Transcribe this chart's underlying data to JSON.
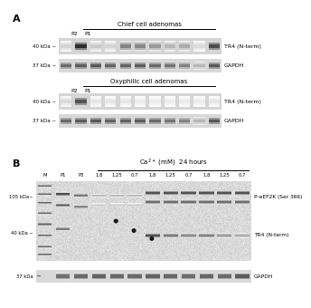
{
  "bg": "#ffffff",
  "gel_bg_light": "#e8e8e8",
  "gel_bg_medium": "#d8d8d8",
  "section1_title": "Chief cell adenomas",
  "section2_title": "Oxyphilic cell adenomas",
  "sectionB_title": "Ca$^{2+}$ (mM)  24 hours",
  "label_A": "A",
  "label_B": "B",
  "kdaA1_1": "40 kDa ~",
  "kdaA1_2": "37 kDa ~",
  "kdaA2_1": "40 kDa ~",
  "kdaA2_2": "37 kDa ~",
  "kdaB1": "105 kDa~",
  "kdaB2": "40 kDa ~",
  "kdaB3": "37 kDa",
  "prot_A1_1": "TR4 (N-term)",
  "prot_A1_2": "GAPDH",
  "prot_A2_1": "TR4 (N-term)",
  "prot_A2_2": "GAPDH",
  "prot_B1": "P-eEF2K (Ser 366)",
  "prot_B2": "TR4 (N-term)",
  "prot_B3": "GAPDH",
  "cols_B": [
    "M",
    "P1",
    "P3",
    "1.8",
    "1.25",
    "0.7",
    "1.8",
    "1.25",
    "0.7",
    "1.8",
    "1.25",
    "0.7"
  ]
}
